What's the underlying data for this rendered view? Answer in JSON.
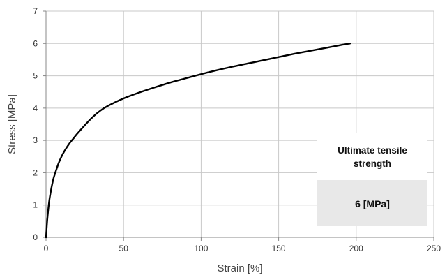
{
  "chart_data": {
    "type": "line",
    "title": "",
    "xlabel": "Strain [%]",
    "ylabel": "Stress  [MPa]",
    "xlim": [
      0,
      250
    ],
    "ylim": [
      0,
      7
    ],
    "xticks": [
      "0",
      "50",
      "100",
      "150",
      "200",
      "250"
    ],
    "yticks": [
      "0",
      "1",
      "2",
      "3",
      "4",
      "5",
      "6",
      "7"
    ],
    "grid": true,
    "legend": "none",
    "series": [
      {
        "color": "#000000",
        "x": [
          0,
          0.5,
          1,
          2,
          3,
          4,
          5,
          6,
          8,
          10,
          12,
          15,
          18,
          20,
          25,
          30,
          35,
          40,
          50,
          60,
          70,
          80,
          90,
          100,
          110,
          120,
          130,
          140,
          150,
          160,
          170,
          180,
          190,
          196
        ],
        "y": [
          0,
          0.35,
          0.65,
          1.1,
          1.4,
          1.65,
          1.85,
          2.0,
          2.28,
          2.5,
          2.68,
          2.9,
          3.08,
          3.2,
          3.47,
          3.72,
          3.92,
          4.07,
          4.3,
          4.48,
          4.64,
          4.79,
          4.92,
          5.05,
          5.17,
          5.28,
          5.38,
          5.48,
          5.58,
          5.68,
          5.77,
          5.86,
          5.95,
          6.0
        ]
      }
    ],
    "annotation": {
      "title_lines": [
        "Ultimate tensile",
        "strength"
      ],
      "value": "6 [MPa]",
      "background": "#e8e8e8"
    }
  }
}
